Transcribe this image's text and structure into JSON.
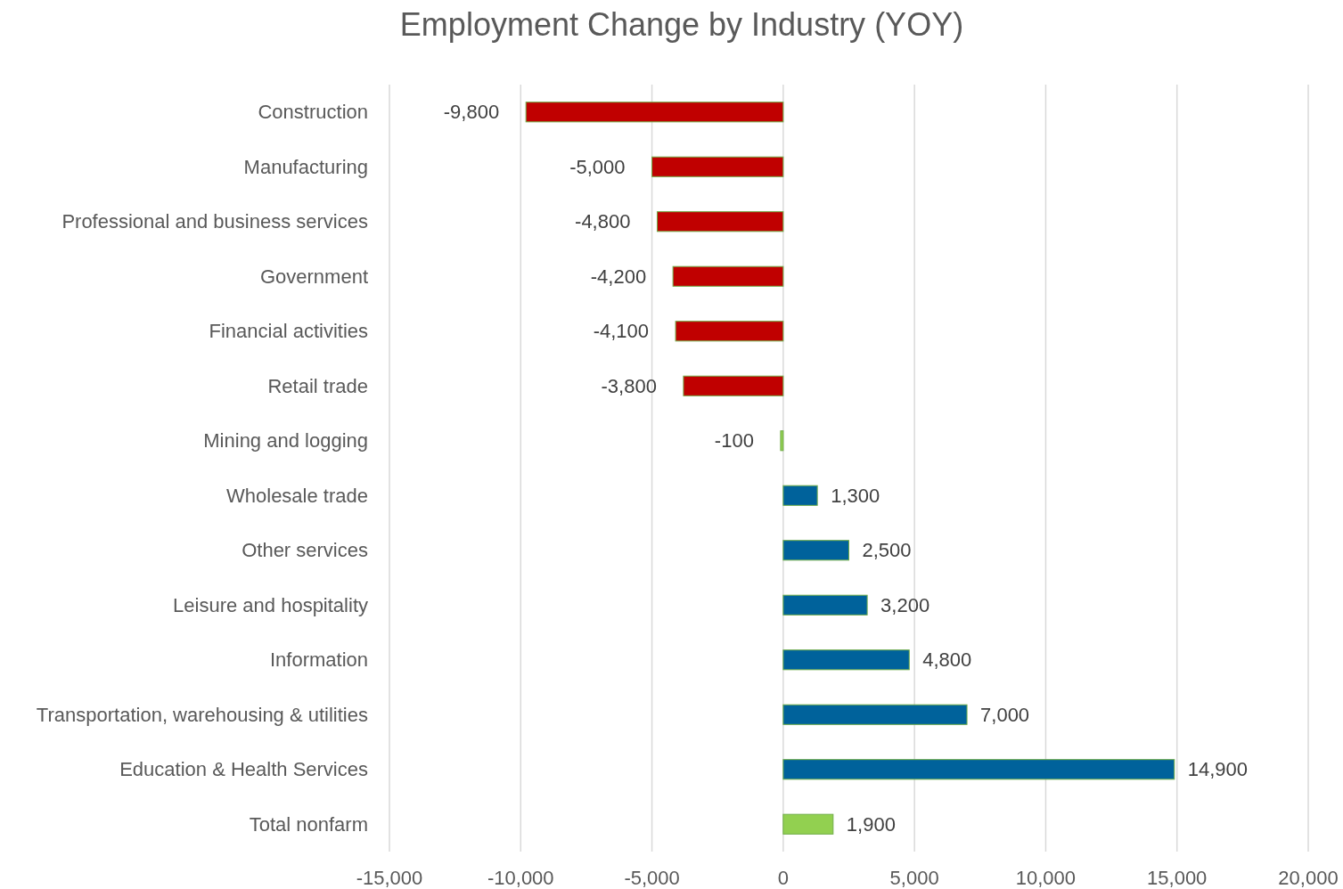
{
  "chart_data": {
    "type": "bar",
    "orientation": "horizontal",
    "title": "Employment Change by Industry (YOY)",
    "categories": [
      "Construction",
      "Manufacturing",
      "Professional and business services",
      "Government",
      "Financial activities",
      "Retail trade",
      "Mining and logging",
      "Wholesale trade",
      "Other services",
      "Leisure and hospitality",
      "Information",
      "Transportation, warehousing & utilities",
      "Education & Health Services",
      "Total nonfarm"
    ],
    "values": [
      -9800,
      -5000,
      -4800,
      -4200,
      -4100,
      -3800,
      -100,
      1300,
      2500,
      3200,
      4800,
      7000,
      14900,
      1900
    ],
    "colors": [
      "#c00000",
      "#c00000",
      "#c00000",
      "#c00000",
      "#c00000",
      "#c00000",
      "#92d050",
      "#00629b",
      "#00629b",
      "#00629b",
      "#00629b",
      "#00629b",
      "#00629b",
      "#92d050"
    ],
    "value_labels": [
      "-9,800",
      "-5,000",
      "-4,800",
      "-4,200",
      "-4,100",
      "-3,800",
      "-100",
      "1,300",
      "2,500",
      "3,200",
      "4,800",
      "7,000",
      "14,900",
      "1,900"
    ],
    "xlim": [
      -15000,
      20000
    ],
    "xticks": [
      {
        "value": -15000,
        "label": "-15,000"
      },
      {
        "value": -10000,
        "label": "-10,000"
      },
      {
        "value": -5000,
        "label": "-5,000"
      },
      0,
      {
        "value": 5000,
        "label": "5,000"
      },
      {
        "value": 10000,
        "label": "10,000"
      },
      {
        "value": 15000,
        "label": "15,000"
      },
      {
        "value": 20000,
        "label": "20,000"
      }
    ],
    "grid": "x"
  }
}
